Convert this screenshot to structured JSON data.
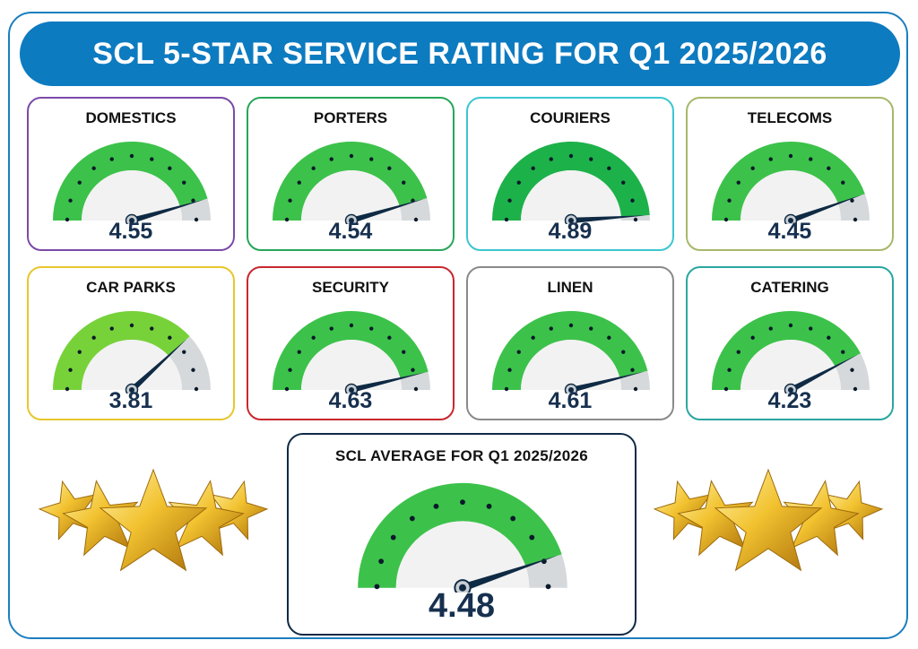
{
  "header": {
    "title": "SCL 5-STAR SERVICE RATING FOR Q1 2025/2026"
  },
  "scale": {
    "min": 0,
    "max": 5
  },
  "colors": {
    "track": "#d6d9dc",
    "inner": "#f2f2f2",
    "needle": "#0f2a44",
    "dot": "#0b1a2a"
  },
  "gauges": [
    {
      "label": "DOMESTICS",
      "value": 4.55,
      "display": "4.55",
      "border": "#7b4aa8",
      "fill": "#3cc24a"
    },
    {
      "label": "PORTERS",
      "value": 4.54,
      "display": "4.54",
      "border": "#27a659",
      "fill": "#3cc24a"
    },
    {
      "label": "COURIERS",
      "value": 4.89,
      "display": "4.89",
      "border": "#3cc6d0",
      "fill": "#1db14a"
    },
    {
      "label": "TELECOMS",
      "value": 4.45,
      "display": "4.45",
      "border": "#a6b86a",
      "fill": "#3cc24a"
    },
    {
      "label": "CAR PARKS",
      "value": 3.81,
      "display": "3.81",
      "border": "#e8c62e",
      "fill": "#77d23a"
    },
    {
      "label": "SECURITY",
      "value": 4.63,
      "display": "4.63",
      "border": "#c8282e",
      "fill": "#3cc24a"
    },
    {
      "label": "LINEN",
      "value": 4.61,
      "display": "4.61",
      "border": "#8a8a8a",
      "fill": "#3cc24a"
    },
    {
      "label": "CATERING",
      "value": 4.23,
      "display": "4.23",
      "border": "#2aa6a0",
      "fill": "#3cc24a"
    }
  ],
  "average": {
    "label": "SCL AVERAGE FOR Q1 2025/2026",
    "value": 4.48,
    "display": "4.48",
    "border": "#0f2a44",
    "fill": "#3cc24a"
  },
  "decorations": {
    "left": "gold-stars-icon",
    "right": "gold-stars-icon"
  }
}
